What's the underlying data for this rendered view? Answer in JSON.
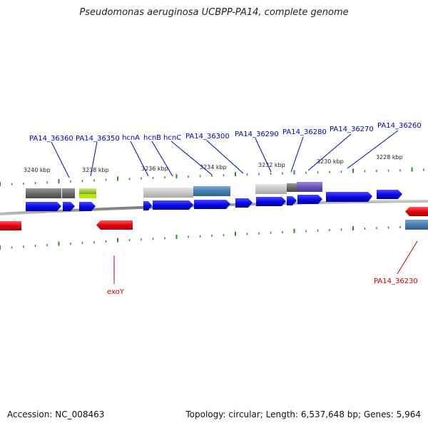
{
  "title": "Pseudomonas aeruginosa UCBPP-PA14, complete genome",
  "footer": {
    "accession": "Accession: NC_008463",
    "topology": "Topology: circular; Length: 6,537,648 bp; Genes: 5,964"
  },
  "colors": {
    "forward_gene": "#0a0aee",
    "reverse_gene": "#e8000d",
    "label_forward": "#0000cc",
    "label_reverse": "#cc0000",
    "tick": "#2e8b2e",
    "backbone": "#888888"
  },
  "kbp_labels": [
    "3240 kbp",
    "3238 kbp",
    "3236 kbp",
    "3234 kbp",
    "3232 kbp",
    "3230 kbp",
    "3228 kbp"
  ],
  "forward_gene_labels": [
    "PA14_36360",
    "PA14_36350",
    "hcnA",
    "hcnB",
    "hcnC",
    "PA14_36300",
    "PA14_36290",
    "PA14_36280",
    "PA14_36270",
    "PA14_36260"
  ],
  "reverse_gene_labels": [
    "exoY",
    "PA14_36230"
  ]
}
